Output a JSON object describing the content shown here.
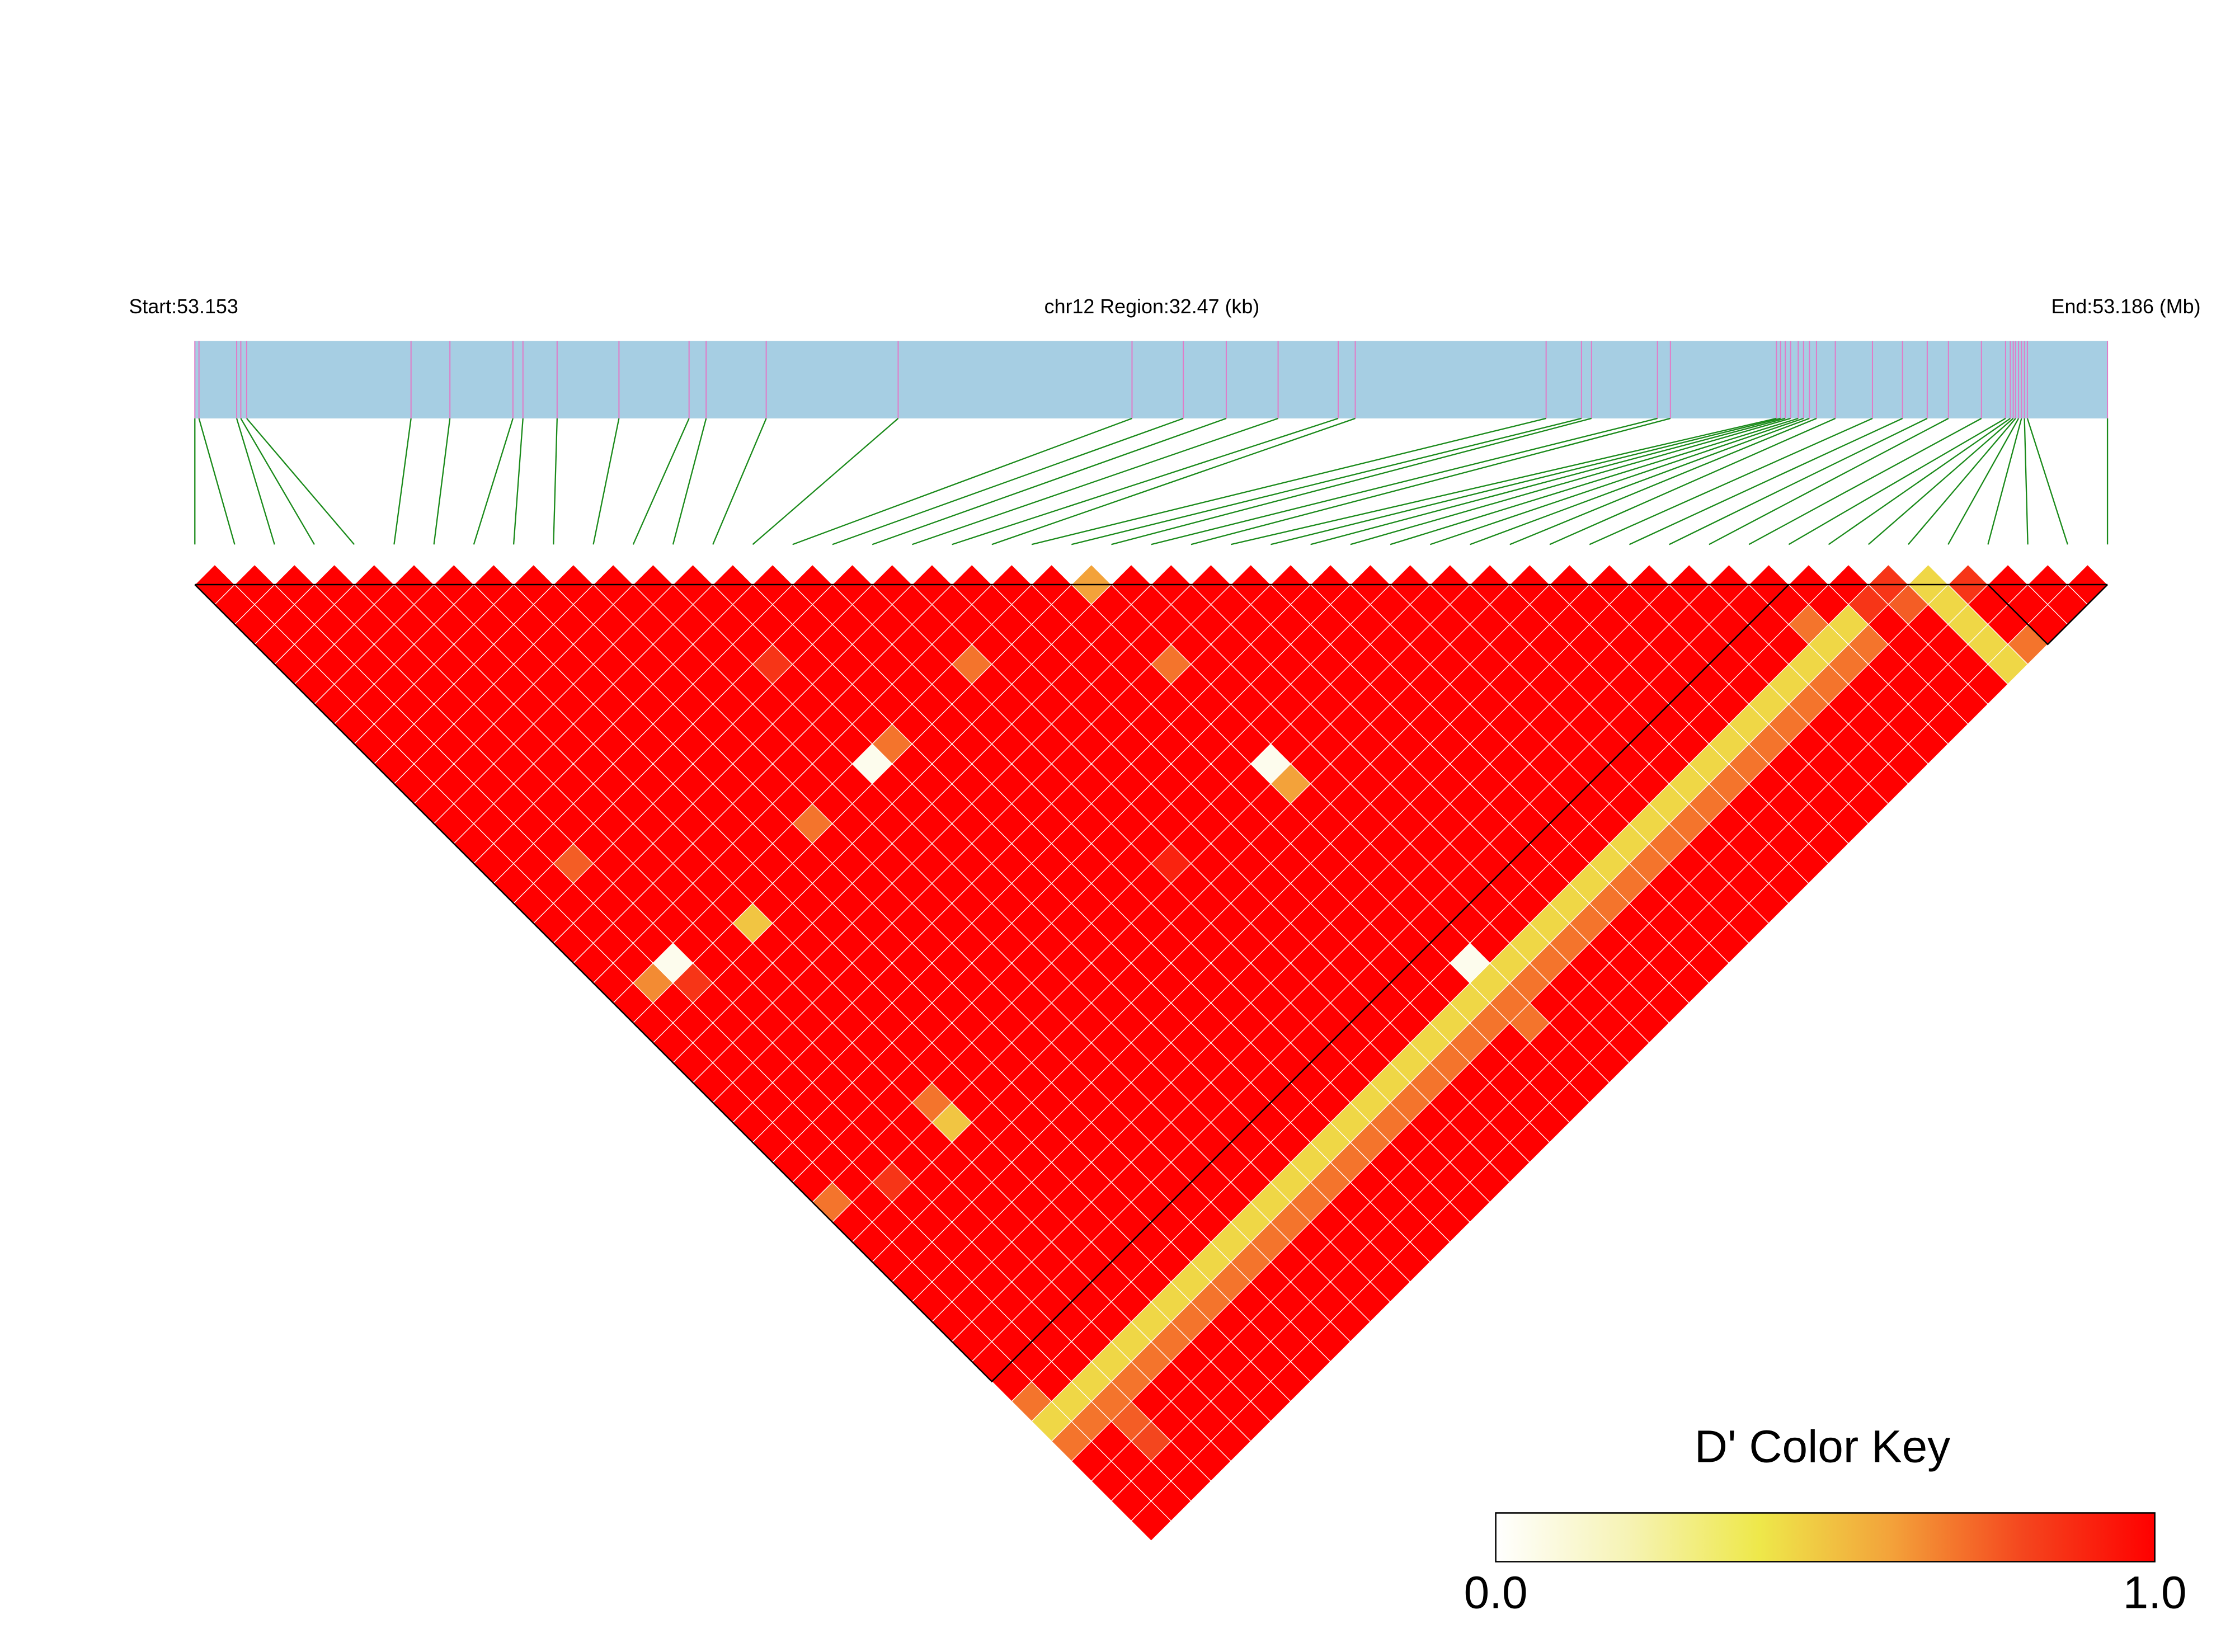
{
  "chart_data": {
    "type": "ld_heatmap",
    "start_label": "Start:53.153",
    "region_label": "chr12 Region:32.47 (kb)",
    "end_label": "End:53.186 (Mb)",
    "xlim": [
      0,
      32.47
    ],
    "positions": [
      0,
      0.07,
      0.71,
      0.78,
      0.88,
      3.67,
      4.33,
      5.4,
      5.57,
      6.15,
      7.2,
      8.39,
      8.68,
      9.7,
      11.94,
      15.91,
      16.78,
      17.51,
      18.39,
      19.41,
      19.7,
      22.94,
      23.54,
      23.71,
      24.83,
      25.05,
      26.85,
      26.92,
      27.0,
      27.09,
      27.22,
      27.31,
      27.41,
      27.53,
      27.85,
      28.48,
      28.99,
      29.41,
      29.77,
      30.33,
      30.74,
      30.82,
      30.87,
      30.91,
      30.96,
      31.01,
      31.06,
      31.11,
      32.47
    ],
    "bar_color": "#a6cee3",
    "tick_color": "#e07cc8",
    "link_color": "#1a8a1a",
    "matrix": [
      [
        1,
        1,
        1,
        1,
        1,
        1,
        1,
        1,
        1,
        1,
        1,
        1,
        1,
        1,
        1,
        1,
        1,
        1,
        1,
        1,
        1,
        1,
        1,
        1,
        1,
        1,
        1,
        1,
        1,
        1,
        1,
        0.7,
        1,
        1,
        1,
        1,
        1,
        1,
        1,
        1,
        1,
        0.7,
        0.45,
        0.7,
        1,
        1,
        1,
        1
      ],
      [
        1,
        1,
        1,
        1,
        1,
        1,
        1,
        1,
        1,
        1,
        1,
        1,
        1,
        1,
        1,
        1,
        1,
        1,
        1,
        1,
        0.65,
        1,
        1,
        1,
        1,
        1,
        1,
        1,
        1,
        1,
        1,
        1,
        1,
        1,
        1,
        1,
        1,
        1,
        1,
        1,
        1,
        0.45,
        0.7,
        1,
        1,
        1,
        1
      ],
      [
        1,
        1,
        1,
        1,
        1,
        1,
        1,
        1,
        1,
        1,
        1,
        1,
        1,
        1,
        0.75,
        1,
        1,
        1,
        1,
        0.05,
        0.85,
        1,
        1,
        1,
        1,
        1,
        1,
        1,
        1,
        1,
        0.85,
        1,
        1,
        1,
        1,
        1,
        1,
        1,
        1,
        1,
        0.45,
        0.7,
        0.75,
        0.8,
        1,
        1
      ],
      [
        1,
        1,
        1,
        1,
        1,
        1,
        1,
        1,
        1,
        1,
        1,
        1,
        1,
        1,
        1,
        1,
        1,
        1,
        1,
        1,
        1,
        1,
        1,
        1,
        1,
        1,
        1,
        1,
        1,
        1,
        1,
        1,
        1,
        1,
        1,
        1,
        1,
        1,
        1,
        0.45,
        0.7,
        1,
        1,
        1,
        1
      ],
      [
        1,
        1,
        1,
        1,
        1,
        1,
        1,
        1,
        1,
        1,
        1,
        1,
        1,
        1,
        1,
        1,
        1,
        1,
        1,
        1,
        1,
        1,
        1,
        1,
        1,
        1,
        1,
        1,
        1,
        1,
        1,
        1,
        1,
        1,
        1,
        1,
        1,
        1,
        0.45,
        0.7,
        1,
        1,
        1,
        1
      ],
      [
        1,
        1,
        1,
        1,
        1,
        1,
        1,
        1,
        1,
        1,
        1,
        1,
        1,
        1,
        1,
        1,
        1,
        0.5,
        1,
        1,
        1,
        1,
        1,
        1,
        1,
        1,
        0.7,
        0.5,
        1,
        1,
        1,
        1,
        1,
        1,
        1,
        1,
        1,
        0.45,
        0.7,
        1,
        1,
        1,
        1
      ],
      [
        1,
        1,
        1,
        1,
        1,
        1,
        1,
        1,
        1,
        1,
        1,
        1,
        1,
        1,
        1,
        1,
        1,
        1,
        1,
        1,
        1,
        1,
        1,
        1,
        1,
        1,
        1,
        1,
        1,
        1,
        1,
        1,
        1,
        1,
        1,
        1,
        0.45,
        0.7,
        1,
        1,
        1,
        1
      ],
      [
        1,
        1,
        1,
        1,
        1,
        1,
        1,
        1,
        1,
        1,
        1,
        1,
        1,
        1,
        1,
        1,
        1,
        1,
        1,
        1,
        1,
        1,
        1,
        1,
        1,
        1,
        1,
        1,
        1,
        1,
        1,
        1,
        1,
        1,
        1,
        0.45,
        0.7,
        1,
        1,
        1,
        1
      ],
      [
        1,
        1,
        1,
        1,
        1,
        1,
        1,
        1,
        1,
        1,
        1,
        1,
        1,
        1,
        1,
        1,
        1,
        1,
        1,
        1,
        1,
        1,
        1,
        1,
        1,
        1,
        1,
        1,
        1,
        1,
        1,
        1,
        1,
        1,
        0.45,
        0.7,
        1,
        1,
        1,
        1
      ],
      [
        1,
        1,
        1,
        1,
        1,
        1,
        1,
        1,
        1,
        1,
        1,
        1,
        0.7,
        1,
        1,
        1,
        1,
        1,
        1,
        1,
        1,
        1,
        1,
        1,
        1,
        1,
        1,
        1,
        1,
        1,
        1,
        1,
        1,
        0.45,
        0.7,
        1,
        1,
        1,
        1
      ],
      [
        1,
        1,
        1,
        1,
        1,
        1,
        1,
        1,
        1,
        1,
        1,
        1,
        1,
        1,
        1,
        1,
        1,
        1,
        1,
        1,
        1,
        1,
        1,
        1,
        1,
        1,
        1,
        1,
        1,
        1,
        1,
        1,
        0.45,
        0.7,
        1,
        1,
        1,
        1
      ],
      [
        1,
        1,
        1,
        1,
        1,
        1,
        1,
        1,
        1,
        1,
        1,
        1,
        1,
        1,
        1,
        1,
        1,
        1,
        1,
        1,
        1,
        1,
        1,
        1,
        1,
        1,
        1,
        1,
        1,
        1,
        1,
        0.45,
        0.7,
        1,
        1,
        1,
        1
      ],
      [
        1,
        1,
        1,
        1,
        0.85,
        1,
        1,
        1,
        1,
        0.05,
        1,
        1,
        1,
        1,
        1,
        1,
        1,
        1,
        1,
        1,
        1,
        1,
        1,
        1,
        1,
        1,
        1,
        1,
        1,
        1,
        0.45,
        0.7,
        1,
        1,
        1,
        1
      ],
      [
        1,
        1,
        1,
        1,
        1,
        1,
        1,
        1,
        0.7,
        1,
        1,
        1,
        1,
        1,
        1,
        1,
        1,
        1,
        1,
        1,
        1,
        1,
        1,
        1,
        1,
        1,
        1,
        1,
        1,
        0.45,
        0.7,
        1,
        1,
        1,
        1
      ],
      [
        1,
        1,
        1,
        1,
        1,
        1,
        1,
        1,
        1,
        1,
        1,
        1,
        1,
        1,
        1,
        1,
        1,
        1,
        1,
        1,
        1,
        1,
        1,
        1,
        1,
        1,
        1,
        1,
        0.45,
        0.7,
        1,
        1,
        1,
        1
      ],
      [
        1,
        1,
        1,
        1,
        1,
        1,
        1,
        1,
        1,
        1,
        1,
        1,
        1,
        1,
        1,
        1,
        1,
        1,
        1,
        1,
        1,
        1,
        1,
        1,
        1,
        1,
        1,
        0.45,
        0.7,
        1,
        1,
        1,
        1
      ],
      [
        1,
        1,
        1,
        1,
        1,
        1,
        1,
        1,
        1,
        1,
        1,
        1,
        1,
        1,
        1,
        1,
        1,
        1,
        1,
        1,
        1,
        1,
        1,
        1,
        1,
        1,
        0.45,
        0.7,
        1,
        1,
        1,
        1
      ],
      [
        1,
        1,
        1,
        1,
        0.7,
        1,
        1,
        1,
        1,
        1,
        1,
        1,
        1,
        1,
        0.9,
        1,
        1,
        1,
        1,
        1,
        1,
        1,
        1,
        1,
        1,
        0.45,
        0.7,
        1,
        1,
        1,
        1
      ],
      [
        1,
        1,
        1,
        1,
        1,
        1,
        1,
        1,
        1,
        1,
        1,
        1,
        1,
        1,
        1,
        1,
        1,
        1,
        1,
        1,
        1,
        1,
        1,
        1,
        0.45,
        0.7,
        1,
        1,
        1,
        1
      ],
      [
        1,
        1,
        1,
        1,
        1,
        1,
        1,
        1,
        1,
        1,
        1,
        1,
        1,
        1,
        1,
        1,
        1,
        1,
        1,
        1,
        1,
        1,
        1,
        0.45,
        0.7,
        1,
        1,
        1,
        1
      ],
      [
        1,
        1,
        1,
        1,
        1,
        1,
        1,
        1,
        1,
        1,
        1,
        1,
        1,
        1,
        1,
        1,
        1,
        1,
        1,
        1,
        1,
        1,
        0.45,
        0.7,
        1,
        1,
        1,
        1
      ],
      [
        1,
        1,
        1,
        1,
        1,
        1,
        1,
        1,
        1,
        1,
        1,
        1,
        1,
        1,
        1,
        1,
        1,
        1,
        1,
        1,
        1,
        0.45,
        0.7,
        1,
        1,
        1,
        1
      ],
      [
        0.6,
        1,
        1,
        1,
        0.7,
        1,
        1,
        1,
        1,
        0.05,
        0.6,
        1,
        1,
        1,
        1,
        1,
        1,
        1,
        1,
        0.05,
        0.45,
        0.7,
        0.7,
        1,
        1,
        1
      ],
      [
        1,
        1,
        1,
        1,
        1,
        1,
        1,
        1,
        1,
        1,
        1,
        1,
        1,
        1,
        1,
        1,
        1,
        1,
        1,
        0.45,
        0.7,
        1,
        1,
        1,
        1
      ],
      [
        1,
        1,
        1,
        1,
        1,
        1,
        1,
        1,
        1,
        1,
        1,
        1,
        1,
        1,
        1,
        1,
        1,
        1,
        0.45,
        0.7,
        1,
        1,
        1,
        1
      ],
      [
        1,
        1,
        1,
        1,
        1,
        1,
        1,
        1,
        1,
        1,
        1,
        1,
        1,
        1,
        1,
        1,
        1,
        0.45,
        0.7,
        1,
        1,
        1,
        1
      ],
      [
        1,
        1,
        1,
        1,
        1,
        1,
        1,
        1,
        1,
        1,
        1,
        1,
        1,
        1,
        1,
        1,
        0.45,
        0.7,
        1,
        1,
        1,
        1
      ],
      [
        1,
        1,
        1,
        1,
        1,
        1,
        1,
        1,
        1,
        1,
        1,
        1,
        1,
        1,
        1,
        0.45,
        0.7,
        1,
        1,
        1,
        1
      ],
      [
        1,
        1,
        1,
        1,
        1,
        1,
        1,
        1,
        1,
        1,
        1,
        1,
        1,
        1,
        0.45,
        0.7,
        1,
        1,
        1,
        1
      ],
      [
        1,
        1,
        1,
        1,
        1,
        1,
        1,
        1,
        1,
        1,
        1,
        1,
        1,
        0.45,
        0.7,
        1,
        1,
        1,
        1
      ],
      [
        1,
        1,
        1,
        1,
        1,
        1,
        1,
        1,
        1,
        1,
        1,
        1,
        0.45,
        0.7,
        1,
        1,
        1,
        1
      ],
      [
        1,
        1,
        1,
        1,
        1,
        1,
        1,
        1,
        1,
        1,
        1,
        0.45,
        0.7,
        1,
        1,
        1,
        1
      ],
      [
        1,
        1,
        1,
        1,
        1,
        1,
        1,
        1,
        1,
        1,
        0.45,
        0.7,
        1,
        1,
        1,
        1
      ],
      [
        1,
        1,
        1,
        1,
        1,
        1,
        1,
        1,
        1,
        0.45,
        0.7,
        1,
        1,
        1,
        1
      ],
      [
        1,
        1,
        1,
        1,
        1,
        1,
        1,
        1,
        0.45,
        0.7,
        1,
        1,
        1,
        1
      ],
      [
        1,
        1,
        1,
        1,
        1,
        1,
        1,
        0.45,
        0.7,
        1,
        1,
        1,
        1
      ],
      [
        1,
        1,
        1,
        1,
        1,
        1,
        0.45,
        0.7,
        1,
        1,
        1,
        1
      ],
      [
        1,
        1,
        1,
        1,
        1,
        0.45,
        0.7,
        1,
        1,
        1,
        1
      ],
      [
        1,
        1,
        1,
        1,
        0.45,
        0.7,
        1,
        1,
        1,
        1
      ],
      [
        1,
        1,
        0.7,
        0.45,
        0.7,
        1,
        1,
        1,
        1
      ],
      [
        1,
        1,
        0.45,
        0.7,
        1,
        1,
        1,
        1
      ],
      [
        1,
        0.85,
        1,
        1,
        1,
        1,
        1
      ],
      [
        0.85,
        0.75,
        1,
        1,
        1,
        1
      ],
      [
        0.45,
        0.45,
        0.45,
        0.45,
        0.45
      ],
      [
        0.85,
        1,
        1,
        0.7
      ],
      [
        1,
        1,
        1
      ],
      [
        1,
        1
      ],
      [
        1
      ]
    ],
    "blocks": [
      [
        0,
        40
      ],
      [
        45,
        48
      ]
    ],
    "colormap": [
      "#ffffff",
      "#f6f3b5",
      "#eee84a",
      "#f3a23a",
      "#f4461e",
      "#ff0000"
    ],
    "key": {
      "title": "D' Color Key",
      "lim": [
        0,
        1
      ],
      "ticks": [
        {
          "value": 0,
          "label": "0.0"
        },
        {
          "value": 1,
          "label": "1.0"
        }
      ]
    }
  }
}
